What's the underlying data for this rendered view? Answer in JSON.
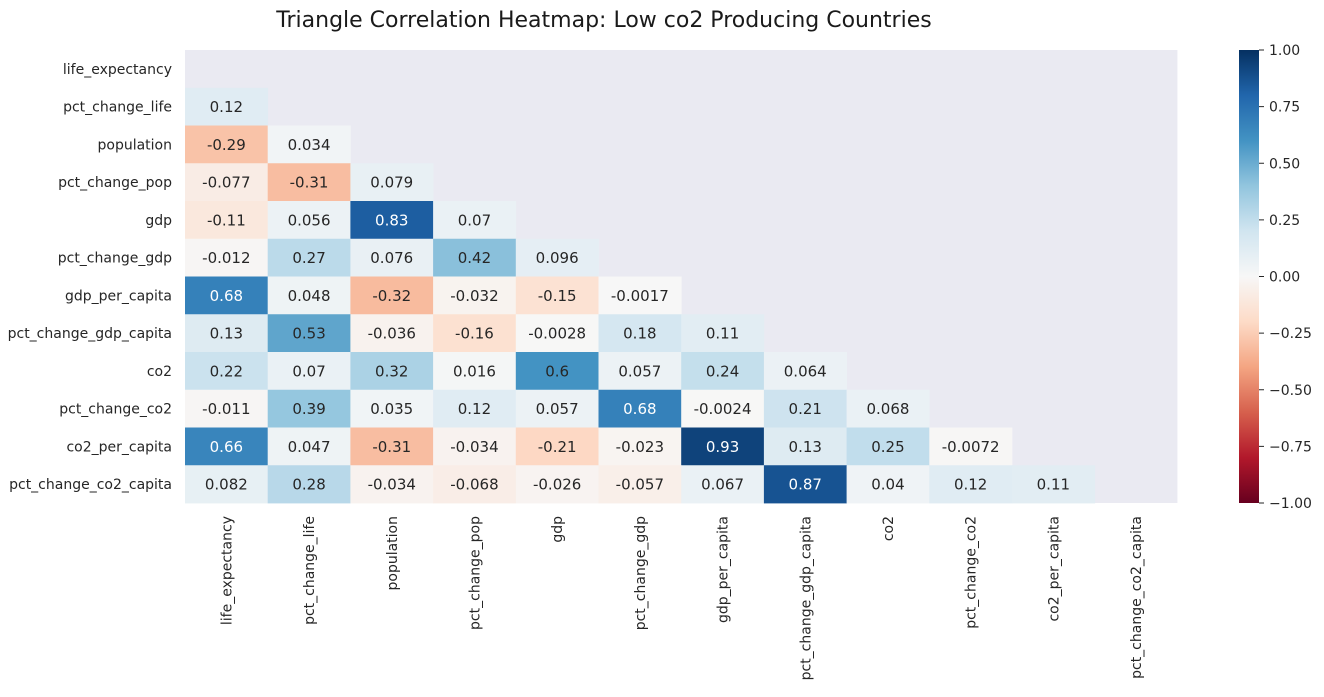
{
  "chart_data": {
    "type": "heatmap",
    "title": "Triangle Correlation Heatmap: Low co2 Producing Countries",
    "variables": [
      "life_expectancy",
      "pct_change_life",
      "population",
      "pct_change_pop",
      "gdp",
      "pct_change_gdp",
      "gdp_per_capita",
      "pct_change_gdp_capita",
      "co2",
      "pct_change_co2",
      "co2_per_capita",
      "pct_change_co2_capita"
    ],
    "mask": "upper triangle including diagonal",
    "values": [
      [],
      [
        "0.12"
      ],
      [
        "-0.29",
        "0.034"
      ],
      [
        "-0.077",
        "-0.31",
        "0.079"
      ],
      [
        "-0.11",
        "0.056",
        "0.83",
        "0.07"
      ],
      [
        "-0.012",
        "0.27",
        "0.076",
        "0.42",
        "0.096"
      ],
      [
        "0.68",
        "0.048",
        "-0.32",
        "-0.032",
        "-0.15",
        "-0.0017"
      ],
      [
        "0.13",
        "0.53",
        "-0.036",
        "-0.16",
        "-0.0028",
        "0.18",
        "0.11"
      ],
      [
        "0.22",
        "0.07",
        "0.32",
        "0.016",
        "0.6",
        "0.057",
        "0.24",
        "0.064"
      ],
      [
        "-0.011",
        "0.39",
        "0.035",
        "0.12",
        "0.057",
        "0.68",
        "-0.0024",
        "0.21",
        "0.068"
      ],
      [
        "0.66",
        "0.047",
        "-0.31",
        "-0.034",
        "-0.21",
        "-0.023",
        "0.93",
        "0.13",
        "0.25",
        "-0.0072"
      ],
      [
        "0.082",
        "0.28",
        "-0.034",
        "-0.068",
        "-0.026",
        "-0.057",
        "0.067",
        "0.87",
        "0.04",
        "0.12",
        "0.11"
      ]
    ],
    "colorbar": {
      "colormap": "RdBu",
      "vmin": -1,
      "vmax": 1,
      "ticks": [
        "1.00",
        "0.75",
        "0.50",
        "0.25",
        "0.00",
        "−0.25",
        "−0.50",
        "−0.75",
        "−1.00"
      ]
    },
    "colors": {
      "background": "#eaeaf2",
      "colormap_stops": [
        "#67001f",
        "#b2182b",
        "#d6604d",
        "#f4a582",
        "#fddbc7",
        "#f7f7f7",
        "#d1e5f0",
        "#92c5de",
        "#4393c3",
        "#2166ac",
        "#053061"
      ]
    },
    "grid": false
  }
}
